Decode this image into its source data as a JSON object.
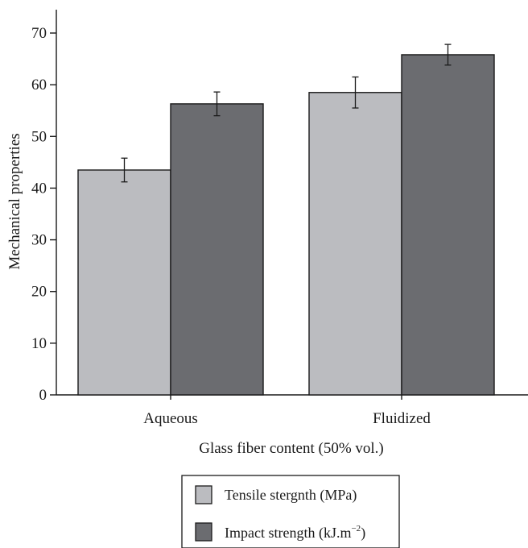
{
  "chart_data": {
    "type": "bar",
    "categories": [
      "Aqueous",
      "Fluidized"
    ],
    "series": [
      {
        "name": "Tensile stergnth (MPa)",
        "values": [
          43.5,
          58.5
        ],
        "errors": [
          2.3,
          3.0
        ],
        "color": "#bbbcc0"
      },
      {
        "name": "Impact strength (kJ.m",
        "name_sup": "−2",
        "name_suffix": ")",
        "values": [
          56.3,
          65.8
        ],
        "errors": [
          2.3,
          2.0
        ],
        "color": "#6b6c70"
      }
    ],
    "xlabel": "Glass fiber content (50% vol.)",
    "ylabel": "Mechanical properties",
    "ylim": [
      0,
      75
    ],
    "yticks": [
      0,
      10,
      20,
      30,
      40,
      50,
      60,
      70
    ],
    "grid": false,
    "legend_position": "bottom-center"
  }
}
